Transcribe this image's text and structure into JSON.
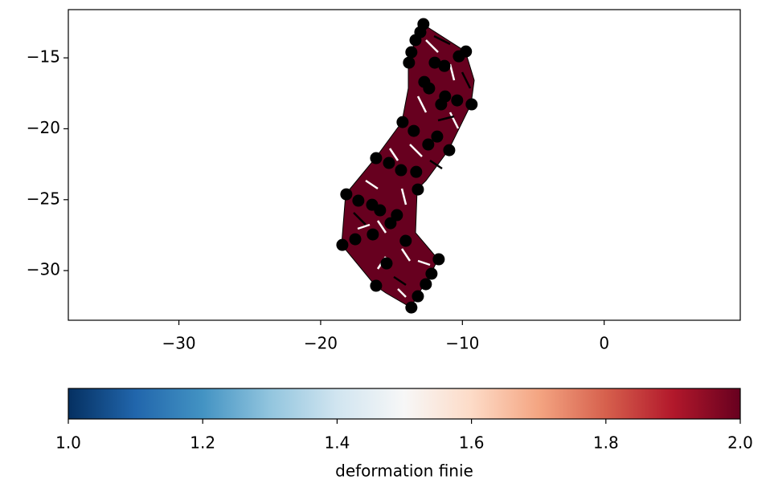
{
  "chart_data": {
    "type": "scatter",
    "x": [
      -12.75,
      -12.97,
      -13.31,
      -13.6,
      -13.77,
      -9.75,
      -10.25,
      -11.95,
      -11.27,
      -12.69,
      -12.35,
      -11.22,
      -9.35,
      -11.5,
      -10.37,
      -14.22,
      -13.43,
      -11.78,
      -12.41,
      -10.93,
      -16.09,
      -15.18,
      -14.33,
      -13.26,
      -13.14,
      -18.19,
      -17.34,
      -16.37,
      -15.81,
      -14.62,
      -15.07,
      -16.32,
      -17.56,
      -18.47,
      -14.0,
      -11.67,
      -15.35,
      -12.18,
      -12.58,
      -16.09,
      -13.14,
      -13.6
    ],
    "y": [
      -12.62,
      -13.19,
      -13.75,
      -14.6,
      -15.34,
      -14.55,
      -14.89,
      -15.34,
      -15.57,
      -16.7,
      -17.15,
      -17.72,
      -18.28,
      -18.28,
      -18.0,
      -19.53,
      -20.15,
      -20.55,
      -21.11,
      -21.51,
      -22.07,
      -22.41,
      -22.92,
      -23.04,
      -24.28,
      -24.62,
      -25.07,
      -25.36,
      -25.75,
      -26.09,
      -26.66,
      -27.45,
      -27.79,
      -28.19,
      -27.9,
      -29.2,
      -29.49,
      -30.22,
      -30.96,
      -31.07,
      -31.81,
      -32.6
    ],
    "color": "#000000",
    "xlim": [
      -37.8,
      9.6
    ],
    "ylim": [
      -33.5,
      -11.6
    ],
    "xticks": [
      {
        "value": -30,
        "label": "−30"
      },
      {
        "value": -20,
        "label": "−20"
      },
      {
        "value": -10,
        "label": "−10"
      },
      0
    ],
    "yticks": [
      {
        "value": -15,
        "label": "−15"
      },
      {
        "value": -20,
        "label": "−20"
      },
      {
        "value": -25,
        "label": "−25"
      },
      {
        "value": -30,
        "label": "−30"
      }
    ],
    "colorbar": {
      "label": "deformation finie",
      "colormap": "RdBu_r",
      "lim": [
        1.0,
        2.0
      ],
      "ticks": [
        {
          "value": 1.0,
          "label": "1.0"
        },
        1.2,
        1.4,
        1.6,
        1.8,
        {
          "value": 2.0,
          "label": "2.0"
        }
      ]
    }
  }
}
